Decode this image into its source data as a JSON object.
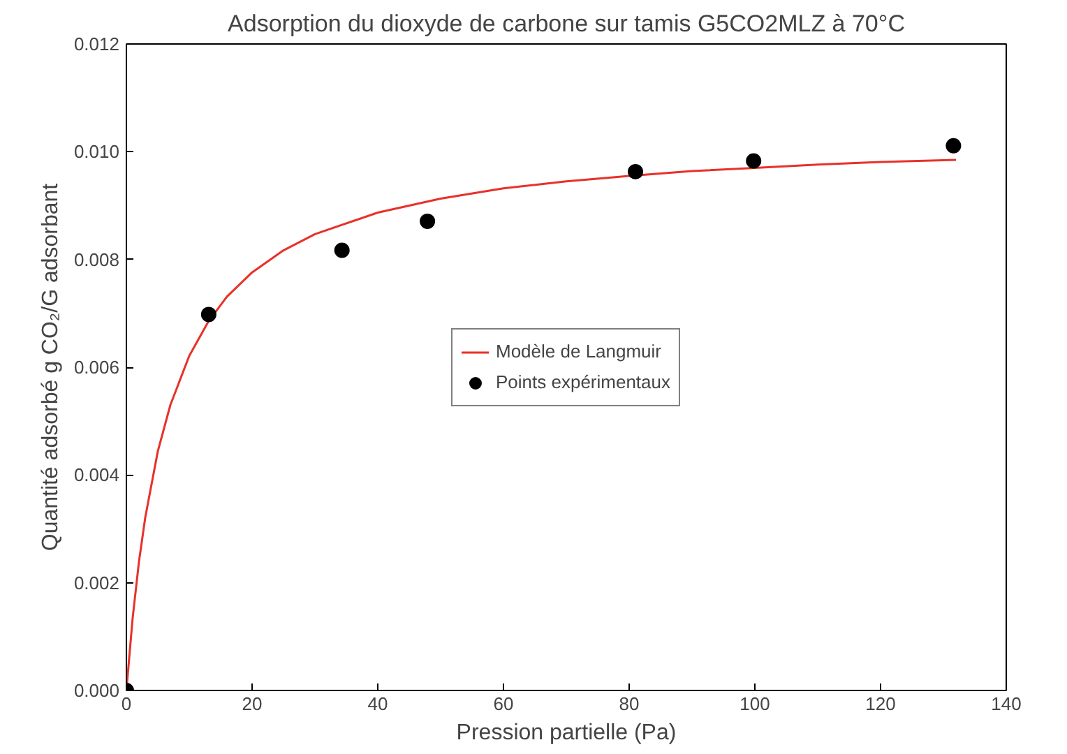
{
  "chart_data": {
    "type": "scatter",
    "title": "Adsorption du dioxyde de carbone sur tamis G5CO2MLZ à 70°C",
    "xlabel": "Pression partielle (Pa)",
    "ylabel": "Quantité adsorbé g CO₂/G adsorbant",
    "xlim": [
      0,
      140
    ],
    "xticks": [
      0,
      20,
      40,
      60,
      80,
      100,
      120,
      140
    ],
    "ylim": [
      0,
      0.012
    ],
    "yticks": [
      {
        "value": 0,
        "label": "0.000"
      },
      {
        "value": 0.002,
        "label": "0.002"
      },
      {
        "value": 0.004,
        "label": "0.004"
      },
      {
        "value": 0.006,
        "label": "0.006"
      },
      {
        "value": 0.008,
        "label": "0.008"
      },
      {
        "value": 0.01,
        "label": "0.010"
      },
      {
        "value": 0.012,
        "label": "0.012"
      }
    ],
    "grid": false,
    "legend": "center",
    "series": [
      {
        "name": "Modèle de Langmuir",
        "type": "line",
        "color": "#e8312a",
        "marker": "none",
        "line_style": "solid",
        "x": [
          0,
          1,
          2,
          3,
          5,
          7,
          10,
          13,
          16,
          20,
          25,
          30,
          40,
          50,
          60,
          70,
          80,
          90,
          100,
          110,
          120,
          132
        ],
        "values": [
          0,
          0.00135,
          0.00239,
          0.00321,
          0.00444,
          0.0053,
          0.00621,
          0.00684,
          0.00731,
          0.00776,
          0.00817,
          0.00847,
          0.00887,
          0.00913,
          0.00932,
          0.00945,
          0.00955,
          0.00964,
          0.0097,
          0.00976,
          0.00981,
          0.00985
        ]
      },
      {
        "name": "Points expérimentaux",
        "color": "#000000",
        "marker": "circle",
        "x": [
          0,
          13.1,
          34.3,
          47.9,
          81,
          99.8,
          131.6
        ],
        "values": [
          0,
          0.00698,
          0.00817,
          0.00871,
          0.00963,
          0.00983,
          0.01011
        ]
      }
    ]
  }
}
